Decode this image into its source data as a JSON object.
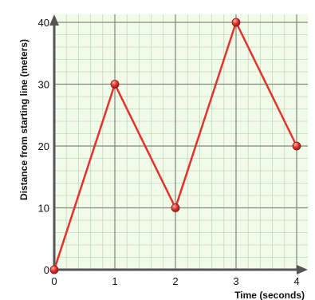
{
  "chart_data": {
    "type": "line",
    "xlabel": "Time (seconds)",
    "ylabel": "Distance from starting line (meters)",
    "x": [
      0,
      1,
      2,
      3,
      4
    ],
    "series": [
      {
        "values": [
          0,
          30,
          10,
          40,
          20
        ]
      }
    ],
    "xlim": [
      0,
      4
    ],
    "ylim": [
      0,
      40
    ],
    "xticks": [
      "0",
      "1",
      "2",
      "3",
      "4"
    ],
    "yticks": [
      "0",
      "10",
      "20",
      "30",
      "40"
    ],
    "grid": true,
    "minor_grid_per_major": 5,
    "colors": {
      "background": "#f1fbea",
      "minor_grid": "#c3d9b8",
      "major_grid": "#7d8a7a",
      "axis": "#555555",
      "line": "#e2332a",
      "marker": "#e2332a"
    }
  }
}
